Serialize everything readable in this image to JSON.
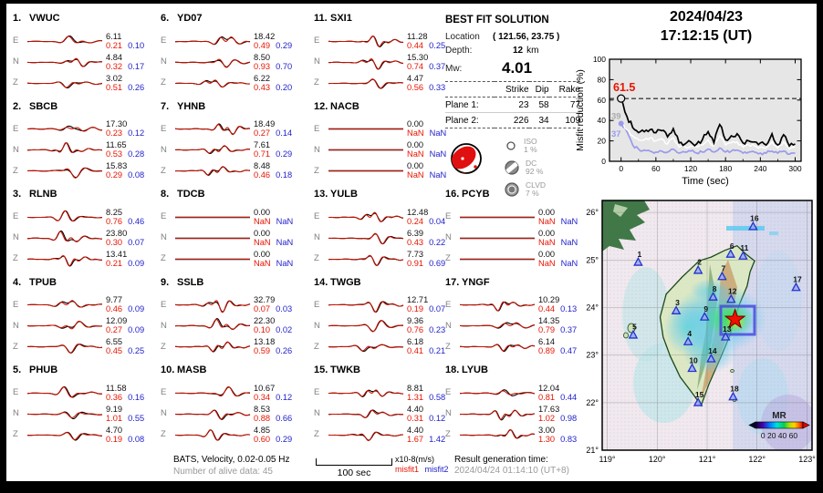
{
  "header": {
    "date": "2024/04/23",
    "time": "17:12:15  (UT)"
  },
  "best_fit": {
    "title": "BEST FIT SOLUTION",
    "location_label": "Location",
    "location_value": "( 121.56,  23.75 )",
    "depth_label": "Depth:",
    "depth_value": "12",
    "depth_unit": "km",
    "mw_label": "Mw:",
    "mw_value": "4.01",
    "table": {
      "headers": [
        "Strike",
        "Dip",
        "Rake"
      ],
      "rows": [
        {
          "label": "Plane 1:",
          "strike": "23",
          "dip": "58",
          "rake": "77"
        },
        {
          "label": "Plane 2:",
          "strike": "226",
          "dip": "34",
          "rake": "109"
        }
      ]
    },
    "decomposition": [
      {
        "name": "ISO",
        "percent": "1 %"
      },
      {
        "name": "DC",
        "percent": "92 %"
      },
      {
        "name": "CLVD",
        "percent": "7 %"
      }
    ]
  },
  "stations": [
    {
      "num": "1.",
      "name": "VWUC",
      "col": 0,
      "slot": 0,
      "components": [
        {
          "comp": "E",
          "amp": "6.11",
          "m1": "0.21",
          "m2": "0.10"
        },
        {
          "comp": "N",
          "amp": "4.84",
          "m1": "0.32",
          "m2": "0.17"
        },
        {
          "comp": "Z",
          "amp": "3.02",
          "m1": "0.51",
          "m2": "0.26"
        }
      ]
    },
    {
      "num": "2.",
      "name": "SBCB",
      "col": 0,
      "slot": 1,
      "components": [
        {
          "comp": "E",
          "amp": "17.30",
          "m1": "0.23",
          "m2": "0.12"
        },
        {
          "comp": "N",
          "amp": "11.65",
          "m1": "0.53",
          "m2": "0.28"
        },
        {
          "comp": "Z",
          "amp": "15.83",
          "m1": "0.29",
          "m2": "0.08"
        }
      ]
    },
    {
      "num": "3.",
      "name": "RLNB",
      "col": 0,
      "slot": 2,
      "components": [
        {
          "comp": "E",
          "amp": "8.25",
          "m1": "0.76",
          "m2": "0.46"
        },
        {
          "comp": "N",
          "amp": "23.80",
          "m1": "0.30",
          "m2": "0.07"
        },
        {
          "comp": "Z",
          "amp": "13.41",
          "m1": "0.21",
          "m2": "0.09"
        }
      ]
    },
    {
      "num": "4.",
      "name": "TPUB",
      "col": 0,
      "slot": 3,
      "components": [
        {
          "comp": "E",
          "amp": "9.77",
          "m1": "0.46",
          "m2": "0.09"
        },
        {
          "comp": "N",
          "amp": "12.09",
          "m1": "0.27",
          "m2": "0.09"
        },
        {
          "comp": "Z",
          "amp": "6.55",
          "m1": "0.45",
          "m2": "0.25"
        }
      ]
    },
    {
      "num": "5.",
      "name": "PHUB",
      "col": 0,
      "slot": 4,
      "components": [
        {
          "comp": "E",
          "amp": "11.58",
          "m1": "0.36",
          "m2": "0.16"
        },
        {
          "comp": "N",
          "amp": "9.19",
          "m1": "1.01",
          "m2": "0.55"
        },
        {
          "comp": "Z",
          "amp": "4.70",
          "m1": "0.19",
          "m2": "0.08"
        }
      ]
    },
    {
      "num": "6.",
      "name": "YD07",
      "col": 1,
      "slot": 0,
      "components": [
        {
          "comp": "E",
          "amp": "18.42",
          "m1": "0.49",
          "m2": "0.29"
        },
        {
          "comp": "N",
          "amp": "8.50",
          "m1": "0.93",
          "m2": "0.70"
        },
        {
          "comp": "Z",
          "amp": "6.22",
          "m1": "0.43",
          "m2": "0.20"
        }
      ]
    },
    {
      "num": "7.",
      "name": "YHNB",
      "col": 1,
      "slot": 1,
      "components": [
        {
          "comp": "E",
          "amp": "18.49",
          "m1": "0.27",
          "m2": "0.14"
        },
        {
          "comp": "N",
          "amp": "7.61",
          "m1": "0.71",
          "m2": "0.29"
        },
        {
          "comp": "Z",
          "amp": "8.48",
          "m1": "0.46",
          "m2": "0.18"
        }
      ]
    },
    {
      "num": "8.",
      "name": "TDCB",
      "col": 1,
      "slot": 2,
      "components": [
        {
          "comp": "E",
          "amp": "0.00",
          "m1": "NaN",
          "m2": "NaN"
        },
        {
          "comp": "N",
          "amp": "0.00",
          "m1": "NaN",
          "m2": "NaN"
        },
        {
          "comp": "Z",
          "amp": "0.00",
          "m1": "NaN",
          "m2": "NaN"
        }
      ]
    },
    {
      "num": "9.",
      "name": "SSLB",
      "col": 1,
      "slot": 3,
      "components": [
        {
          "comp": "E",
          "amp": "32.79",
          "m1": "0.07",
          "m2": "0.03"
        },
        {
          "comp": "N",
          "amp": "22.30",
          "m1": "0.10",
          "m2": "0.02"
        },
        {
          "comp": "Z",
          "amp": "13.18",
          "m1": "0.59",
          "m2": "0.26"
        }
      ]
    },
    {
      "num": "10.",
      "name": "MASB",
      "col": 1,
      "slot": 4,
      "components": [
        {
          "comp": "E",
          "amp": "10.67",
          "m1": "0.34",
          "m2": "0.12"
        },
        {
          "comp": "N",
          "amp": "8.53",
          "m1": "0.88",
          "m2": "0.66"
        },
        {
          "comp": "Z",
          "amp": "4.85",
          "m1": "0.60",
          "m2": "0.29"
        }
      ]
    },
    {
      "num": "11.",
      "name": "SXI1",
      "col": 2,
      "slot": 0,
      "components": [
        {
          "comp": "E",
          "amp": "11.28",
          "m1": "0.44",
          "m2": "0.25"
        },
        {
          "comp": "N",
          "amp": "15.30",
          "m1": "0.74",
          "m2": "0.37"
        },
        {
          "comp": "Z",
          "amp": "4.47",
          "m1": "0.56",
          "m2": "0.33"
        }
      ]
    },
    {
      "num": "12.",
      "name": "NACB",
      "col": 2,
      "slot": 1,
      "components": [
        {
          "comp": "E",
          "amp": "0.00",
          "m1": "NaN",
          "m2": "NaN"
        },
        {
          "comp": "N",
          "amp": "0.00",
          "m1": "NaN",
          "m2": "NaN"
        },
        {
          "comp": "Z",
          "amp": "0.00",
          "m1": "NaN",
          "m2": "NaN"
        }
      ]
    },
    {
      "num": "13.",
      "name": "YULB",
      "col": 2,
      "slot": 2,
      "components": [
        {
          "comp": "E",
          "amp": "12.48",
          "m1": "0.24",
          "m2": "0.04"
        },
        {
          "comp": "N",
          "amp": "6.39",
          "m1": "0.43",
          "m2": "0.22"
        },
        {
          "comp": "Z",
          "amp": "7.73",
          "m1": "0.91",
          "m2": "0.69"
        }
      ]
    },
    {
      "num": "14.",
      "name": "TWGB",
      "col": 2,
      "slot": 3,
      "components": [
        {
          "comp": "E",
          "amp": "12.71",
          "m1": "0.19",
          "m2": "0.07"
        },
        {
          "comp": "N",
          "amp": "9.36",
          "m1": "0.76",
          "m2": "0.23"
        },
        {
          "comp": "Z",
          "amp": "6.18",
          "m1": "0.41",
          "m2": "0.21"
        }
      ]
    },
    {
      "num": "15.",
      "name": "TWKB",
      "col": 2,
      "slot": 4,
      "components": [
        {
          "comp": "E",
          "amp": "8.81",
          "m1": "1.31",
          "m2": "0.58"
        },
        {
          "comp": "N",
          "amp": "4.40",
          "m1": "0.31",
          "m2": "0.12"
        },
        {
          "comp": "Z",
          "amp": "4.40",
          "m1": "1.67",
          "m2": "1.42"
        }
      ]
    },
    {
      "num": "16.",
      "name": "PCYB",
      "col": 3,
      "slot": 2,
      "components": [
        {
          "comp": "E",
          "amp": "0.00",
          "m1": "NaN",
          "m2": "NaN"
        },
        {
          "comp": "N",
          "amp": "0.00",
          "m1": "NaN",
          "m2": "NaN"
        },
        {
          "comp": "Z",
          "amp": "0.00",
          "m1": "NaN",
          "m2": "NaN"
        }
      ]
    },
    {
      "num": "17.",
      "name": "YNGF",
      "col": 3,
      "slot": 3,
      "components": [
        {
          "comp": "E",
          "amp": "10.29",
          "m1": "0.44",
          "m2": "0.13"
        },
        {
          "comp": "N",
          "amp": "14.35",
          "m1": "0.79",
          "m2": "0.37"
        },
        {
          "comp": "Z",
          "amp": "6.14",
          "m1": "0.89",
          "m2": "0.47"
        }
      ]
    },
    {
      "num": "18.",
      "name": "LYUB",
      "col": 3,
      "slot": 4,
      "components": [
        {
          "comp": "E",
          "amp": "12.04",
          "m1": "0.81",
          "m2": "0.44"
        },
        {
          "comp": "N",
          "amp": "17.63",
          "m1": "1.02",
          "m2": "0.98"
        },
        {
          "comp": "Z",
          "amp": "3.00",
          "m1": "1.30",
          "m2": "0.83"
        }
      ]
    }
  ],
  "footer": {
    "line1": "BATS, Velocity, 0.02-0.05 Hz",
    "line2": "Number of alive data: 45",
    "scalebar_label": "100 sec",
    "units": "x10-8(m/s)",
    "misfit1_label": "misfit1",
    "misfit2_label": "misfit2",
    "result_label": "Result generation time:",
    "result_time": "2024/04/24 01:14:10 (UT+8)"
  },
  "colors": {
    "misfit1": "#e81400",
    "misfit2": "#2222cc",
    "trace_obs": "#000000",
    "trace_syn": "#cc1100",
    "initial_line": "#9a9aec",
    "station_marker": "#2233cc"
  },
  "chart_data": [
    {
      "type": "line",
      "title": "",
      "xlabel": "Time (sec)",
      "ylabel": "Misfit reduction (%)",
      "xlim": [
        -20,
        310
      ],
      "ylim": [
        0,
        100
      ],
      "xticks": [
        0,
        60,
        120,
        180,
        240,
        300
      ],
      "yticks": [
        0,
        20,
        40,
        60,
        80,
        100
      ],
      "grid": false,
      "background": "#e6e6e6",
      "dashed_reference_y": 61.5,
      "x": [
        0,
        10,
        20,
        30,
        40,
        50,
        60,
        70,
        80,
        90,
        100,
        110,
        120,
        130,
        140,
        150,
        160,
        170,
        180,
        190,
        200,
        210,
        220,
        230,
        240,
        250,
        260,
        270,
        280,
        290,
        300
      ],
      "series": [
        {
          "name": "best_solution",
          "color": "#000000",
          "values": [
            61.5,
            44,
            33,
            28,
            29,
            31,
            28,
            30,
            24,
            32,
            18,
            17,
            19,
            17,
            21,
            29,
            18,
            36,
            21,
            25,
            27,
            18,
            20,
            19,
            18,
            16,
            27,
            16,
            26,
            15,
            17
          ]
        },
        {
          "name": "running_solution",
          "color": "#ffffff",
          "values": [
            39,
            31,
            25,
            21,
            21,
            23,
            20,
            22,
            17,
            23,
            14,
            14,
            15,
            14,
            16,
            21,
            15,
            25,
            16,
            18,
            19,
            14,
            16,
            15,
            14,
            13,
            19,
            13,
            19,
            12,
            14
          ]
        },
        {
          "name": "initial_solution",
          "color": "#9a9aec",
          "values": [
            37,
            29,
            16,
            12,
            11,
            10,
            9,
            10,
            9,
            12,
            8,
            9,
            10,
            8,
            9,
            12,
            9,
            13,
            9,
            10,
            11,
            8,
            9,
            9,
            8,
            8,
            10,
            8,
            10,
            7,
            8
          ]
        }
      ],
      "annotations": [
        {
          "text": "61.5",
          "color": "#e81400"
        },
        {
          "text": "39",
          "color": "#aaaaaa"
        },
        {
          "text": "37",
          "color": "#9a9aec"
        }
      ]
    },
    {
      "type": "map",
      "lon_range": [
        119,
        123
      ],
      "lat_range": [
        21,
        26
      ],
      "lon_ticks": [
        "119°",
        "120°",
        "121°",
        "122°",
        "123°"
      ],
      "lat_ticks": [
        "21°",
        "22°",
        "23°",
        "24°",
        "25°",
        "26°"
      ],
      "epicenter": {
        "lon": 121.56,
        "lat": 23.75
      },
      "colorbar": {
        "label": "MR",
        "tick_text": "0 20 40 60"
      },
      "stations": [
        {
          "id": "1",
          "lon": 119.62,
          "lat": 24.95
        },
        {
          "id": "2",
          "lon": 120.82,
          "lat": 24.78
        },
        {
          "id": "3",
          "lon": 120.38,
          "lat": 23.93
        },
        {
          "id": "4",
          "lon": 120.62,
          "lat": 23.28
        },
        {
          "id": "5",
          "lon": 119.52,
          "lat": 23.42
        },
        {
          "id": "6",
          "lon": 121.47,
          "lat": 25.12
        },
        {
          "id": "7",
          "lon": 121.3,
          "lat": 24.65
        },
        {
          "id": "8",
          "lon": 121.12,
          "lat": 24.22
        },
        {
          "id": "9",
          "lon": 120.95,
          "lat": 23.8
        },
        {
          "id": "10",
          "lon": 120.7,
          "lat": 22.72
        },
        {
          "id": "11",
          "lon": 121.72,
          "lat": 25.08
        },
        {
          "id": "12",
          "lon": 121.48,
          "lat": 24.17
        },
        {
          "id": "13",
          "lon": 121.37,
          "lat": 23.38
        },
        {
          "id": "14",
          "lon": 121.08,
          "lat": 22.92
        },
        {
          "id": "15",
          "lon": 120.82,
          "lat": 22.0
        },
        {
          "id": "16",
          "lon": 121.92,
          "lat": 25.7
        },
        {
          "id": "17",
          "lon": 122.78,
          "lat": 24.42
        },
        {
          "id": "18",
          "lon": 121.52,
          "lat": 22.12
        }
      ]
    }
  ]
}
